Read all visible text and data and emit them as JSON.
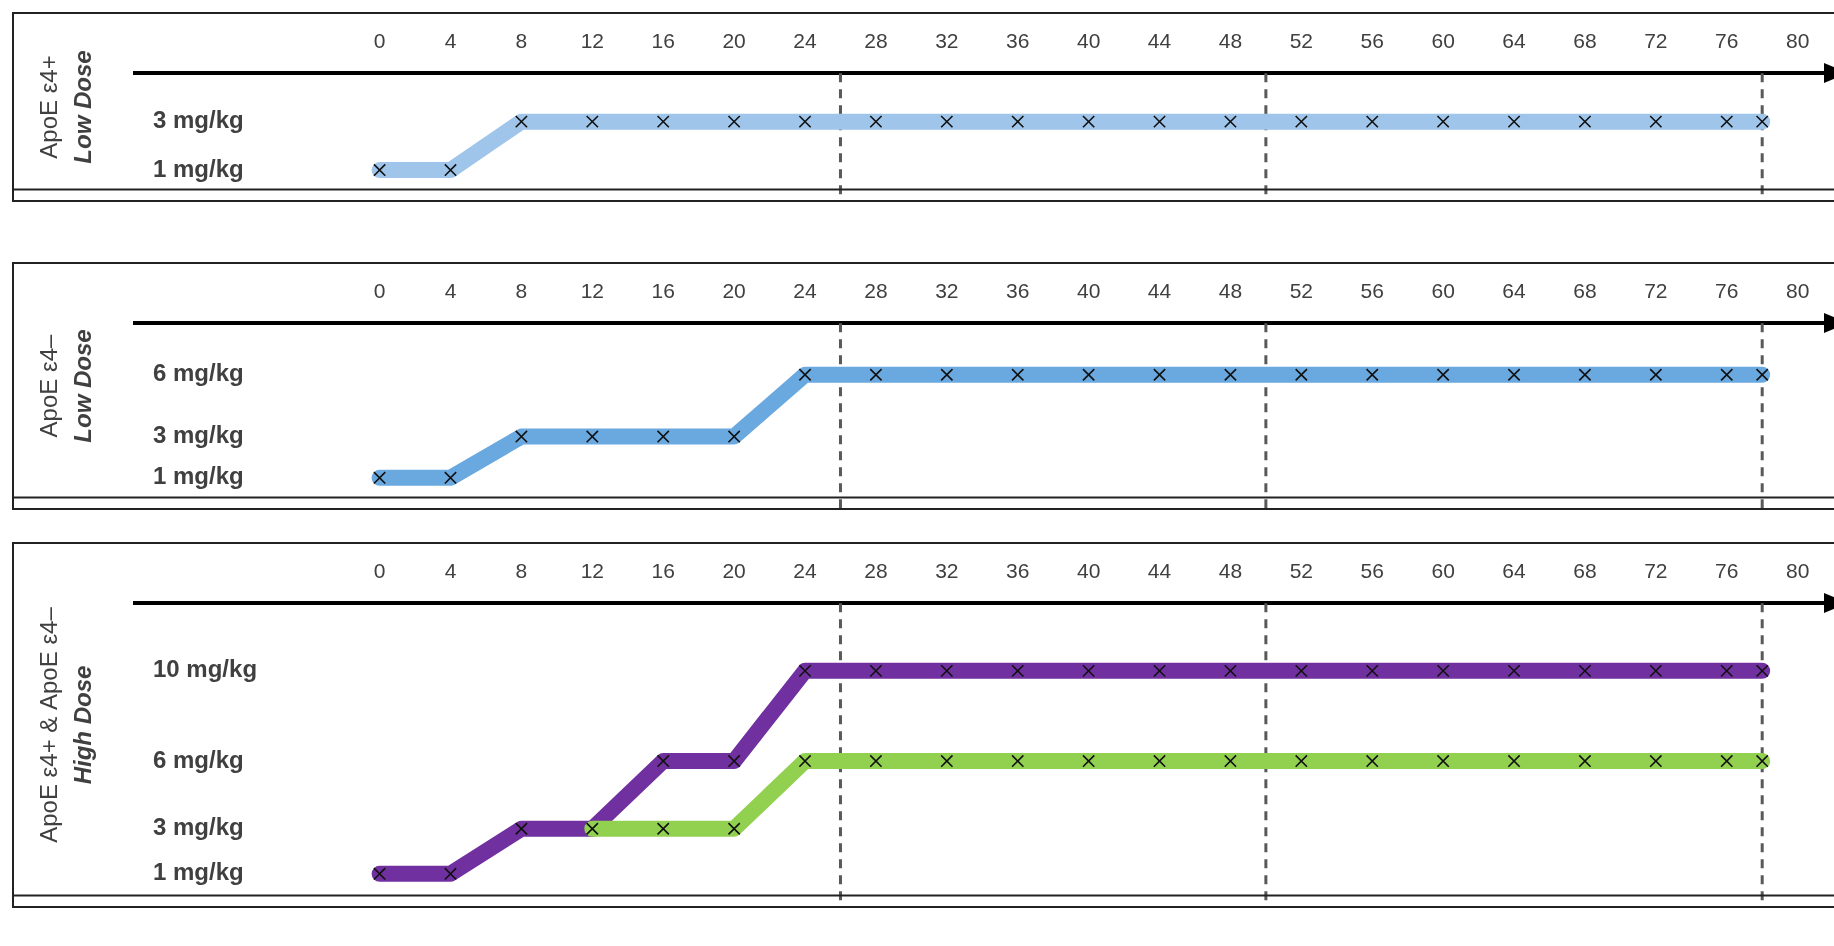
{
  "chart_data": [
    {
      "type": "line",
      "ylabel": "ApoE ε4+\nLow Dose",
      "x": [
        0,
        4,
        8,
        12,
        16,
        20,
        24,
        28,
        32,
        36,
        40,
        44,
        48,
        52,
        56,
        60,
        64,
        68,
        72,
        76,
        78
      ],
      "xlim": [
        -13.8,
        81.6
      ],
      "xticks": [
        0,
        4,
        8,
        12,
        16,
        20,
        24,
        28,
        32,
        36,
        40,
        44,
        48,
        52,
        56,
        60,
        64,
        68,
        72,
        76,
        80
      ],
      "ylim": [
        0.16,
        5
      ],
      "yticks": [
        {
          "value": 1,
          "label": "1 mg/kg"
        },
        {
          "value": 3,
          "label": "3 mg/kg"
        }
      ],
      "marker": "cross",
      "grid": false,
      "legend": false,
      "ref_lines": [
        {
          "axis": "x",
          "value": 26,
          "line_style": "dashed",
          "color": "#595959"
        },
        {
          "axis": "x",
          "value": 50,
          "line_style": "dashed",
          "color": "#595959"
        },
        {
          "axis": "x",
          "value": 78,
          "line_style": "dashed",
          "color": "#595959"
        }
      ],
      "series": [
        {
          "color": "#9fc5ea",
          "values": [
            1,
            1,
            3,
            3,
            3,
            3,
            3,
            3,
            3,
            3,
            3,
            3,
            3,
            3,
            3,
            3,
            3,
            3,
            3,
            3,
            3
          ]
        }
      ]
    },
    {
      "type": "line",
      "ylabel": "ApoE ε4–\nLow Dose",
      "x": [
        0,
        4,
        8,
        12,
        16,
        20,
        24,
        28,
        32,
        36,
        40,
        44,
        48,
        52,
        56,
        60,
        64,
        68,
        72,
        76,
        78
      ],
      "xlim": [
        -13.8,
        81.6
      ],
      "xticks": [
        0,
        4,
        8,
        12,
        16,
        20,
        24,
        28,
        32,
        36,
        40,
        44,
        48,
        52,
        56,
        60,
        64,
        68,
        72,
        76,
        80
      ],
      "ylim": [
        0,
        8.5
      ],
      "yticks": [
        {
          "value": 1,
          "label": "1 mg/kg"
        },
        {
          "value": 3,
          "label": "3 mg/kg"
        },
        {
          "value": 6,
          "label": "6 mg/kg"
        }
      ],
      "marker": "cross",
      "grid": false,
      "legend": false,
      "ref_lines": [
        {
          "axis": "x",
          "value": 26,
          "line_style": "dashed",
          "color": "#595959"
        },
        {
          "axis": "x",
          "value": 50,
          "line_style": "dashed",
          "color": "#595959"
        },
        {
          "axis": "x",
          "value": 78,
          "line_style": "dashed",
          "color": "#595959"
        }
      ],
      "series": [
        {
          "color": "#6aa8e0",
          "values": [
            1,
            1,
            3,
            3,
            3,
            3,
            6,
            6,
            6,
            6,
            6,
            6,
            6,
            6,
            6,
            6,
            6,
            6,
            6,
            6,
            6
          ]
        }
      ]
    },
    {
      "type": "line",
      "ylabel": "ApoE ε4+ & ApoE ε4–\nHigh Dose",
      "x": [
        0,
        4,
        8,
        12,
        16,
        20,
        24,
        28,
        32,
        36,
        40,
        44,
        48,
        52,
        56,
        60,
        64,
        68,
        72,
        76,
        78
      ],
      "xlim": [
        -13.8,
        81.6
      ],
      "xticks": [
        0,
        4,
        8,
        12,
        16,
        20,
        24,
        28,
        32,
        36,
        40,
        44,
        48,
        52,
        56,
        60,
        64,
        68,
        72,
        76,
        80
      ],
      "ylim": [
        0,
        13
      ],
      "yticks": [
        {
          "value": 1,
          "label": "1 mg/kg"
        },
        {
          "value": 3,
          "label": "3 mg/kg"
        },
        {
          "value": 6,
          "label": "6 mg/kg"
        },
        {
          "value": 10,
          "label": "10 mg/kg"
        }
      ],
      "marker": "cross",
      "grid": false,
      "legend": false,
      "ref_lines": [
        {
          "axis": "x",
          "value": 26,
          "line_style": "dashed",
          "color": "#595959"
        },
        {
          "axis": "x",
          "value": 50,
          "line_style": "dashed",
          "color": "#595959"
        },
        {
          "axis": "x",
          "value": 78,
          "line_style": "dashed",
          "color": "#595959"
        }
      ],
      "series": [
        {
          "color": "#92d050",
          "values": [
            null,
            null,
            null,
            3,
            3,
            3,
            6,
            6,
            6,
            6,
            6,
            6,
            6,
            6,
            6,
            6,
            6,
            6,
            6,
            6,
            6
          ]
        },
        {
          "color": "#7030a0",
          "values": [
            1,
            1,
            3,
            3,
            6,
            6,
            10,
            10,
            10,
            10,
            10,
            10,
            10,
            10,
            10,
            10,
            10,
            10,
            10,
            10,
            10
          ]
        }
      ]
    }
  ]
}
